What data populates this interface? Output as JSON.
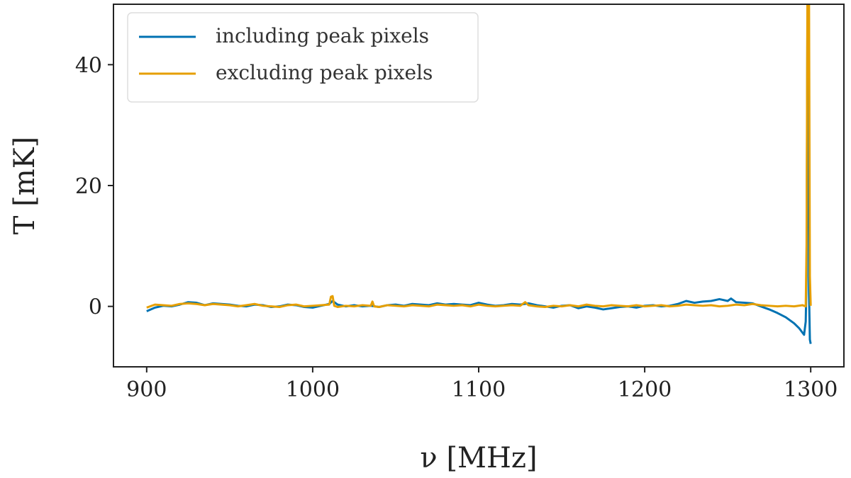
{
  "chart_data": {
    "type": "line",
    "xlabel": "ν [MHz]",
    "ylabel": "T [mK]",
    "xlim": [
      880,
      1320
    ],
    "ylim": [
      -10,
      50
    ],
    "xticks": [
      900,
      1000,
      1100,
      1200,
      1300
    ],
    "yticks": [
      0,
      20,
      40
    ],
    "grid": false,
    "legend_position": "top-left",
    "series": [
      {
        "name": "including peak pixels",
        "color": "#0072b2",
        "points": [
          [
            900,
            -0.8
          ],
          [
            905,
            -0.2
          ],
          [
            910,
            0.1
          ],
          [
            915,
            0.0
          ],
          [
            920,
            0.3
          ],
          [
            925,
            0.7
          ],
          [
            930,
            0.6
          ],
          [
            935,
            0.2
          ],
          [
            940,
            0.5
          ],
          [
            945,
            0.4
          ],
          [
            950,
            0.3
          ],
          [
            955,
            0.1
          ],
          [
            960,
            0.0
          ],
          [
            965,
            0.3
          ],
          [
            970,
            0.2
          ],
          [
            975,
            -0.1
          ],
          [
            980,
            0.0
          ],
          [
            985,
            0.3
          ],
          [
            990,
            0.2
          ],
          [
            995,
            -0.1
          ],
          [
            1000,
            -0.2
          ],
          [
            1005,
            0.1
          ],
          [
            1010,
            0.4
          ],
          [
            1012,
            0.9
          ],
          [
            1015,
            0.3
          ],
          [
            1020,
            0.0
          ],
          [
            1025,
            0.2
          ],
          [
            1030,
            0.0
          ],
          [
            1035,
            0.1
          ],
          [
            1040,
            -0.1
          ],
          [
            1045,
            0.2
          ],
          [
            1050,
            0.3
          ],
          [
            1055,
            0.1
          ],
          [
            1060,
            0.4
          ],
          [
            1065,
            0.3
          ],
          [
            1070,
            0.2
          ],
          [
            1075,
            0.5
          ],
          [
            1080,
            0.3
          ],
          [
            1085,
            0.4
          ],
          [
            1090,
            0.3
          ],
          [
            1095,
            0.2
          ],
          [
            1100,
            0.6
          ],
          [
            1105,
            0.3
          ],
          [
            1110,
            0.1
          ],
          [
            1115,
            0.2
          ],
          [
            1120,
            0.4
          ],
          [
            1125,
            0.3
          ],
          [
            1130,
            0.5
          ],
          [
            1135,
            0.2
          ],
          [
            1140,
            0.0
          ],
          [
            1145,
            -0.2
          ],
          [
            1150,
            0.1
          ],
          [
            1155,
            0.2
          ],
          [
            1160,
            -0.3
          ],
          [
            1165,
            0.0
          ],
          [
            1170,
            -0.2
          ],
          [
            1175,
            -0.5
          ],
          [
            1180,
            -0.3
          ],
          [
            1185,
            -0.1
          ],
          [
            1190,
            0.0
          ],
          [
            1195,
            -0.2
          ],
          [
            1200,
            0.1
          ],
          [
            1205,
            0.2
          ],
          [
            1210,
            0.0
          ],
          [
            1215,
            0.1
          ],
          [
            1220,
            0.4
          ],
          [
            1225,
            0.9
          ],
          [
            1230,
            0.6
          ],
          [
            1235,
            0.8
          ],
          [
            1240,
            0.9
          ],
          [
            1245,
            1.2
          ],
          [
            1250,
            0.9
          ],
          [
            1252,
            1.3
          ],
          [
            1255,
            0.7
          ],
          [
            1260,
            0.6
          ],
          [
            1265,
            0.5
          ],
          [
            1270,
            0.0
          ],
          [
            1275,
            -0.5
          ],
          [
            1280,
            -1.1
          ],
          [
            1285,
            -1.8
          ],
          [
            1290,
            -2.8
          ],
          [
            1293,
            -3.6
          ],
          [
            1296,
            -4.7
          ],
          [
            1297,
            -2.5
          ],
          [
            1297.5,
            5
          ],
          [
            1298,
            45
          ],
          [
            1298.5,
            50
          ],
          [
            1299,
            2
          ],
          [
            1299.5,
            -5.5
          ],
          [
            1300,
            -6.2
          ]
        ]
      },
      {
        "name": "excluding peak pixels",
        "color": "#e69f00",
        "points": [
          [
            900,
            -0.2
          ],
          [
            905,
            0.3
          ],
          [
            910,
            0.2
          ],
          [
            915,
            0.1
          ],
          [
            920,
            0.4
          ],
          [
            925,
            0.5
          ],
          [
            930,
            0.4
          ],
          [
            935,
            0.2
          ],
          [
            940,
            0.4
          ],
          [
            945,
            0.3
          ],
          [
            950,
            0.2
          ],
          [
            955,
            0.0
          ],
          [
            960,
            0.2
          ],
          [
            965,
            0.4
          ],
          [
            970,
            0.1
          ],
          [
            975,
            0.0
          ],
          [
            980,
            -0.1
          ],
          [
            985,
            0.2
          ],
          [
            990,
            0.3
          ],
          [
            995,
            0.0
          ],
          [
            1000,
            0.1
          ],
          [
            1005,
            0.2
          ],
          [
            1010,
            0.3
          ],
          [
            1011,
            1.6
          ],
          [
            1012,
            1.7
          ],
          [
            1013,
            0.1
          ],
          [
            1015,
            -0.1
          ],
          [
            1020,
            0.1
          ],
          [
            1025,
            0.0
          ],
          [
            1030,
            0.2
          ],
          [
            1035,
            0.1
          ],
          [
            1036,
            0.8
          ],
          [
            1037,
            0.0
          ],
          [
            1040,
            -0.1
          ],
          [
            1045,
            0.2
          ],
          [
            1050,
            0.1
          ],
          [
            1055,
            0.0
          ],
          [
            1060,
            0.2
          ],
          [
            1065,
            0.1
          ],
          [
            1070,
            0.0
          ],
          [
            1075,
            0.3
          ],
          [
            1080,
            0.2
          ],
          [
            1085,
            0.1
          ],
          [
            1090,
            0.2
          ],
          [
            1095,
            0.0
          ],
          [
            1100,
            0.3
          ],
          [
            1105,
            0.1
          ],
          [
            1110,
            0.0
          ],
          [
            1115,
            0.1
          ],
          [
            1120,
            0.2
          ],
          [
            1125,
            0.1
          ],
          [
            1128,
            0.7
          ],
          [
            1130,
            0.2
          ],
          [
            1135,
            0.0
          ],
          [
            1140,
            -0.1
          ],
          [
            1145,
            0.1
          ],
          [
            1150,
            0.0
          ],
          [
            1155,
            0.2
          ],
          [
            1160,
            0.0
          ],
          [
            1165,
            0.3
          ],
          [
            1170,
            0.1
          ],
          [
            1175,
            0.0
          ],
          [
            1180,
            0.2
          ],
          [
            1185,
            0.1
          ],
          [
            1190,
            0.0
          ],
          [
            1195,
            0.2
          ],
          [
            1200,
            0.0
          ],
          [
            1205,
            0.1
          ],
          [
            1210,
            0.2
          ],
          [
            1215,
            0.0
          ],
          [
            1220,
            0.1
          ],
          [
            1225,
            0.3
          ],
          [
            1230,
            0.2
          ],
          [
            1235,
            0.1
          ],
          [
            1240,
            0.2
          ],
          [
            1245,
            0.0
          ],
          [
            1250,
            0.1
          ],
          [
            1255,
            0.3
          ],
          [
            1260,
            0.2
          ],
          [
            1265,
            0.4
          ],
          [
            1270,
            0.2
          ],
          [
            1275,
            0.1
          ],
          [
            1280,
            0.0
          ],
          [
            1285,
            0.1
          ],
          [
            1290,
            0.0
          ],
          [
            1295,
            0.2
          ],
          [
            1297,
            0.0
          ],
          [
            1297.5,
            10
          ],
          [
            1298,
            50
          ],
          [
            1299,
            50
          ],
          [
            1299.5,
            5
          ],
          [
            1300,
            0.1
          ]
        ]
      }
    ]
  }
}
